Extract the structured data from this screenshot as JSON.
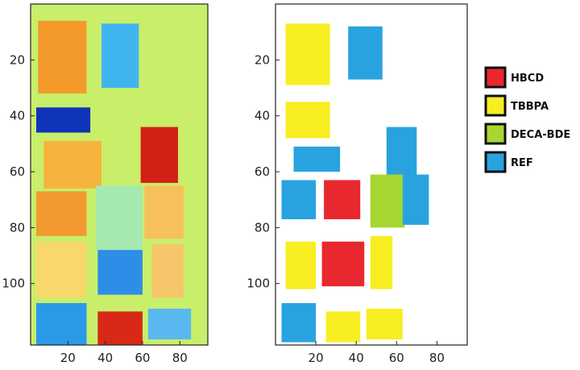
{
  "chart_data": [
    {
      "type": "heatmap",
      "description_hidden": false,
      "xlim": [
        0,
        95
      ],
      "ylim": [
        0,
        122
      ],
      "xticks": [
        20,
        40,
        60,
        80
      ],
      "yticks": [
        20,
        40,
        60,
        80,
        100
      ],
      "background_color": "#c9ee6a",
      "regions": [
        {
          "x0": 4,
          "x1": 30,
          "y0": 6,
          "y1": 32,
          "color": "#f39a2a"
        },
        {
          "x0": 38,
          "x1": 58,
          "y0": 7,
          "y1": 30,
          "color": "#3fb4ef"
        },
        {
          "x0": 3,
          "x1": 32,
          "y0": 37,
          "y1": 46,
          "color": "#1034b8"
        },
        {
          "x0": 59,
          "x1": 79,
          "y0": 44,
          "y1": 64,
          "color": "#d22014"
        },
        {
          "x0": 7,
          "x1": 38,
          "y0": 49,
          "y1": 66,
          "color": "#f6b33c"
        },
        {
          "x0": 3,
          "x1": 30,
          "y0": 67,
          "y1": 83,
          "color": "#f29a2f"
        },
        {
          "x0": 35,
          "x1": 60,
          "y0": 65,
          "y1": 88,
          "color": "#a5e8b0"
        },
        {
          "x0": 61,
          "x1": 82,
          "y0": 65,
          "y1": 84,
          "color": "#f8c05a"
        },
        {
          "x0": 3,
          "x1": 30,
          "y0": 85,
          "y1": 105,
          "color": "#f8d86a"
        },
        {
          "x0": 36,
          "x1": 60,
          "y0": 88,
          "y1": 104,
          "color": "#2d8ee8"
        },
        {
          "x0": 65,
          "x1": 82,
          "y0": 86,
          "y1": 105,
          "color": "#f6c76a"
        },
        {
          "x0": 3,
          "x1": 30,
          "y0": 107,
          "y1": 122,
          "color": "#2a9ae8"
        },
        {
          "x0": 36,
          "x1": 60,
          "y0": 110,
          "y1": 122,
          "color": "#d82818"
        },
        {
          "x0": 63,
          "x1": 86,
          "y0": 109,
          "y1": 120,
          "color": "#59b8f0"
        }
      ]
    },
    {
      "type": "heatmap",
      "xlim": [
        0,
        95
      ],
      "ylim": [
        0,
        122
      ],
      "xticks": [
        20,
        40,
        60,
        80
      ],
      "yticks": [
        20,
        40,
        60,
        80,
        100
      ],
      "background_color": "#ffffff",
      "legend": [
        {
          "label": "HBCD",
          "color": "#e8282e"
        },
        {
          "label": "TBBPA",
          "color": "#f8ee22"
        },
        {
          "label": "DECA-BDE",
          "color": "#a7d633"
        },
        {
          "label": "REF",
          "color": "#29a3e0"
        }
      ],
      "regions": [
        {
          "class": "TBBPA",
          "x0": 5,
          "x1": 27,
          "y0": 7,
          "y1": 29
        },
        {
          "class": "REF",
          "x0": 36,
          "x1": 53,
          "y0": 8,
          "y1": 27
        },
        {
          "class": "TBBPA",
          "x0": 5,
          "x1": 27,
          "y0": 35,
          "y1": 48
        },
        {
          "class": "REF",
          "x0": 55,
          "x1": 70,
          "y0": 44,
          "y1": 61
        },
        {
          "class": "REF",
          "x0": 9,
          "x1": 32,
          "y0": 51,
          "y1": 60
        },
        {
          "class": "REF",
          "x0": 3,
          "x1": 20,
          "y0": 63,
          "y1": 77
        },
        {
          "class": "HBCD",
          "x0": 24,
          "x1": 42,
          "y0": 63,
          "y1": 77
        },
        {
          "class": "DECA-BDE",
          "x0": 47,
          "x1": 64,
          "y0": 61,
          "y1": 80
        },
        {
          "class": "REF",
          "x0": 63,
          "x1": 76,
          "y0": 61,
          "y1": 79
        },
        {
          "class": "TBBPA",
          "x0": 5,
          "x1": 20,
          "y0": 85,
          "y1": 102
        },
        {
          "class": "HBCD",
          "x0": 23,
          "x1": 44,
          "y0": 85,
          "y1": 101
        },
        {
          "class": "TBBPA",
          "x0": 47,
          "x1": 58,
          "y0": 83,
          "y1": 102
        },
        {
          "class": "REF",
          "x0": 3,
          "x1": 20,
          "y0": 107,
          "y1": 121
        },
        {
          "class": "TBBPA",
          "x0": 25,
          "x1": 42,
          "y0": 110,
          "y1": 121
        },
        {
          "class": "TBBPA",
          "x0": 45,
          "x1": 63,
          "y0": 109,
          "y1": 120
        }
      ]
    }
  ]
}
